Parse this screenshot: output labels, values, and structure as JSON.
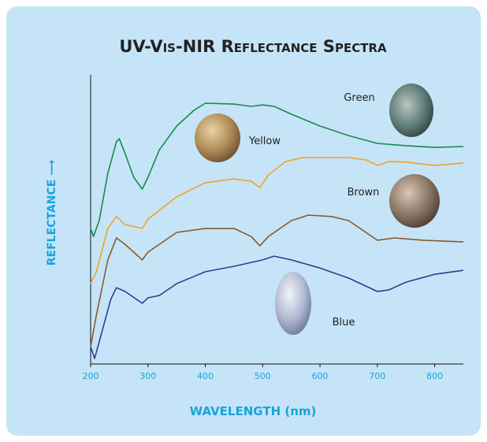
{
  "chart_data": {
    "type": "line",
    "title": "UV-Vis-NIR Reflectance Spectra",
    "x_label": "WAVELENGTH (nm)",
    "y_label": "REFLECTANCE ⟶",
    "xlim": [
      200,
      850
    ],
    "xticks": [
      200,
      300,
      400,
      500,
      600,
      700,
      800
    ],
    "ylim": [
      0,
      100
    ],
    "series": [
      {
        "name": "Green",
        "color": "#1a8a4a",
        "x": [
          200,
          205,
          215,
          230,
          245,
          250,
          260,
          275,
          290,
          300,
          320,
          350,
          380,
          400,
          450,
          480,
          500,
          520,
          550,
          600,
          650,
          700,
          750,
          800,
          850
        ],
        "values": [
          46.9,
          44.1,
          49.6,
          65.9,
          76.8,
          77.9,
          72.8,
          64.6,
          60.5,
          64.6,
          74.1,
          82.3,
          87.7,
          90.2,
          89.9,
          89.1,
          89.6,
          89.1,
          86.4,
          82.3,
          79.0,
          76.3,
          75.5,
          74.9,
          75.2
        ]
      },
      {
        "name": "Yellow",
        "color": "#f2a12a",
        "x": [
          200,
          210,
          230,
          245,
          260,
          290,
          300,
          350,
          400,
          450,
          480,
          495,
          510,
          540,
          570,
          600,
          650,
          680,
          700,
          720,
          750,
          800,
          850
        ],
        "values": [
          27.8,
          31.9,
          46.9,
          51.0,
          48.2,
          46.9,
          50.1,
          57.8,
          62.7,
          64.0,
          63.2,
          61.0,
          65.4,
          70.0,
          71.4,
          71.4,
          71.4,
          70.6,
          68.7,
          70.0,
          69.8,
          68.7,
          69.5
        ]
      },
      {
        "name": "Brown",
        "color": "#8a5a2a",
        "x": [
          200,
          210,
          230,
          245,
          260,
          290,
          300,
          350,
          400,
          450,
          480,
          495,
          510,
          550,
          580,
          620,
          650,
          680,
          700,
          730,
          780,
          850
        ],
        "values": [
          6.0,
          16.9,
          36.0,
          43.6,
          41.4,
          36.0,
          38.7,
          45.5,
          46.9,
          46.9,
          44.1,
          40.9,
          44.1,
          49.6,
          51.5,
          51.0,
          49.6,
          45.5,
          42.8,
          43.6,
          42.8,
          42.2
        ]
      },
      {
        "name": "Blue",
        "color": "#2e3f8f",
        "x": [
          200,
          207,
          220,
          235,
          245,
          260,
          290,
          300,
          320,
          350,
          400,
          450,
          500,
          520,
          550,
          600,
          650,
          700,
          720,
          750,
          800,
          850
        ],
        "values": [
          6.0,
          1.9,
          11.4,
          22.3,
          26.4,
          25.1,
          21.0,
          22.9,
          23.7,
          27.8,
          31.9,
          33.8,
          36.0,
          37.3,
          36.0,
          33.2,
          29.7,
          25.1,
          25.6,
          28.3,
          31.0,
          32.4
        ]
      }
    ]
  }
}
